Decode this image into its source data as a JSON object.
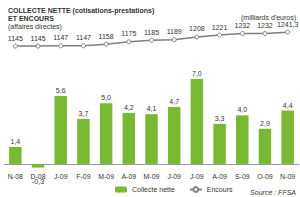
{
  "chart_data": {
    "type": "bar",
    "title": "COLLECTE NETTE (cotisations-prestations)\nET ENCOURS",
    "subtitle": "(affaires directes)",
    "ylabel": "(milliards d'euros)",
    "annotations": [
      "Source : FFSA"
    ],
    "categories": [
      "N-08",
      "D-08",
      "J-09",
      "F-09",
      "M-09",
      "A-09",
      "M-09",
      "J-09",
      "J-09",
      "A-09",
      "S-09",
      "O-09",
      "N-09"
    ],
    "series": [
      {
        "name": "Collecte nette",
        "type": "bar",
        "color": "#78b833",
        "values": [
          1.4,
          -0.3,
          5.6,
          3.7,
          5.0,
          4.2,
          4.1,
          4.7,
          7.0,
          3.3,
          4.0,
          2.9,
          4.4
        ],
        "value_labels": [
          "1,4",
          "-0,3",
          "5,6",
          "3,7",
          "5,0",
          "4,2",
          "4,1",
          "4,7",
          "7,0",
          "3,3",
          "4,0",
          "2,9",
          "4,4"
        ]
      },
      {
        "name": "Encours",
        "type": "line",
        "axis": "y2",
        "color": "#808080",
        "marker": "circle",
        "values": [
          1145,
          1145,
          1147,
          1147,
          1158,
          1175,
          1185,
          1189,
          1208,
          1221,
          1232,
          1232,
          1241.3
        ],
        "value_labels": [
          "1145",
          "1145",
          "1147",
          "1147",
          "1158",
          "1175",
          "1185",
          "1189",
          "1208",
          "1221",
          "1232",
          "1232",
          "1241,3"
        ]
      }
    ],
    "ylim": [
      -0.5,
      11.2
    ],
    "y2lim": [
      290,
      1270
    ],
    "tick_labels": "x",
    "grid": false,
    "legend": "bottom",
    "data_labels": true
  }
}
